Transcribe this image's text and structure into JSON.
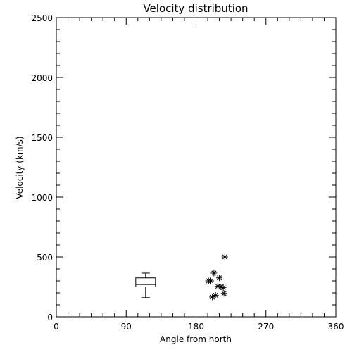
{
  "chart_data": {
    "type": "scatter",
    "title": "Velocity distribution",
    "xlabel": "Angle from north",
    "ylabel": "Velocity (km/s)",
    "xlim": [
      0,
      360
    ],
    "ylim": [
      0,
      2500
    ],
    "xticks": [
      0,
      90,
      180,
      270,
      360
    ],
    "yticks": [
      0,
      500,
      1000,
      1500,
      2000,
      2500
    ],
    "grid": false,
    "boxplot": {
      "x_center": 115,
      "whisker_low": 160,
      "q1": 250,
      "median": 270,
      "q3": 325,
      "whisker_high": 365
    },
    "points": [
      {
        "x": 217,
        "y": 500
      },
      {
        "x": 203,
        "y": 365
      },
      {
        "x": 210,
        "y": 325
      },
      {
        "x": 196,
        "y": 300
      },
      {
        "x": 199,
        "y": 300
      },
      {
        "x": 208,
        "y": 255
      },
      {
        "x": 212,
        "y": 250
      },
      {
        "x": 215,
        "y": 245
      },
      {
        "x": 216,
        "y": 195
      },
      {
        "x": 205,
        "y": 180
      },
      {
        "x": 201,
        "y": 165
      }
    ]
  }
}
